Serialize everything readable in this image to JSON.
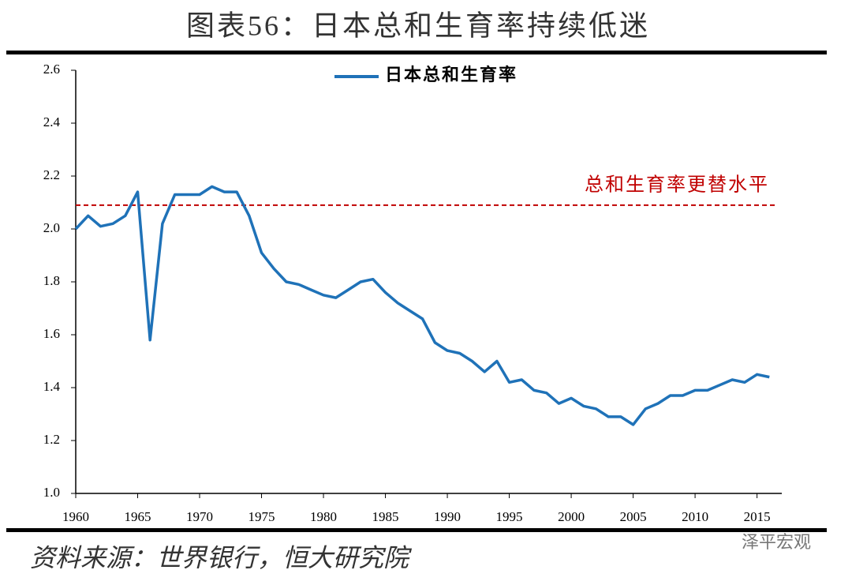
{
  "chart_data": {
    "type": "line",
    "title": "图表56：日本总和生育率持续低迷",
    "x": [
      1960,
      1961,
      1962,
      1963,
      1964,
      1965,
      1966,
      1967,
      1968,
      1969,
      1970,
      1971,
      1972,
      1973,
      1974,
      1975,
      1976,
      1977,
      1978,
      1979,
      1980,
      1981,
      1982,
      1983,
      1984,
      1985,
      1986,
      1987,
      1988,
      1989,
      1990,
      1991,
      1992,
      1993,
      1994,
      1995,
      1996,
      1997,
      1998,
      1999,
      2000,
      2001,
      2002,
      2003,
      2004,
      2005,
      2006,
      2007,
      2008,
      2009,
      2010,
      2011,
      2012,
      2013,
      2014,
      2015,
      2016
    ],
    "series": [
      {
        "name": "日本总和生育率",
        "color": "#1f72b8",
        "values": [
          2.0,
          2.05,
          2.01,
          2.02,
          2.05,
          2.14,
          1.58,
          2.02,
          2.13,
          2.13,
          2.13,
          2.16,
          2.14,
          2.14,
          2.05,
          1.91,
          1.85,
          1.8,
          1.79,
          1.77,
          1.75,
          1.74,
          1.77,
          1.8,
          1.81,
          1.76,
          1.72,
          1.69,
          1.66,
          1.57,
          1.54,
          1.53,
          1.5,
          1.46,
          1.5,
          1.42,
          1.43,
          1.39,
          1.38,
          1.34,
          1.36,
          1.33,
          1.32,
          1.29,
          1.29,
          1.26,
          1.32,
          1.34,
          1.37,
          1.37,
          1.39,
          1.39,
          1.41,
          1.43,
          1.42,
          1.45,
          1.44
        ]
      }
    ],
    "reference_line": {
      "value": 2.09,
      "label": "总和生育率更替水平",
      "color": "#c00000"
    },
    "xlim": [
      1960,
      2017
    ],
    "xticks": [
      1960,
      1965,
      1970,
      1975,
      1980,
      1985,
      1990,
      1995,
      2000,
      2005,
      2010,
      2015
    ],
    "ylim": [
      1.0,
      2.6
    ],
    "yticks": [
      {
        "value": 1.0,
        "label": "1.0"
      },
      1.2,
      1.4,
      1.6,
      1.8,
      {
        "value": 2.0,
        "label": "2.0"
      },
      2.2,
      2.4,
      2.6
    ],
    "grid": false,
    "legend": "top"
  },
  "source": "资料来源：世界银行，恒大研究院",
  "watermark": "泽平宏观"
}
